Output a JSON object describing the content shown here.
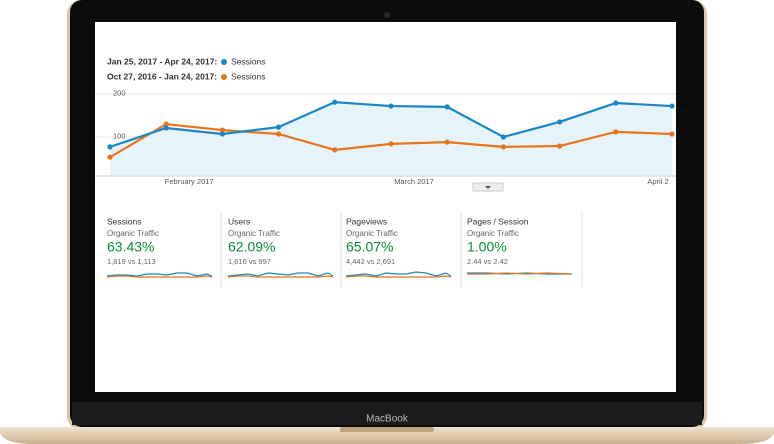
{
  "device": "MacBook",
  "chart_data": {
    "type": "line",
    "categories": [
      null,
      "February 2017",
      null,
      null,
      null,
      "March 2017",
      null,
      null,
      null,
      null,
      "April 2"
    ],
    "series": [
      {
        "name": "Sessions",
        "period": "Jan 25, 2017 - Apr 24, 2017:",
        "color": "#1a87c4",
        "values": [
          77,
          121,
          107,
          123,
          181,
          172,
          170,
          100,
          135,
          179,
          172
        ]
      },
      {
        "name": "Sessions",
        "period": "Oct 27, 2016 - Jan 24, 2017:",
        "color": "#e8751a",
        "values": [
          53,
          130,
          116,
          107,
          70,
          84,
          88,
          77,
          79,
          112,
          107
        ]
      }
    ],
    "ylim": [
      10,
      210
    ],
    "yticks": [
      100,
      200
    ],
    "grid": true
  },
  "metrics": [
    {
      "title": "Sessions",
      "subtitle": "Organic Traffic",
      "change": "63.43%",
      "compare": "1,819 vs 1,113"
    },
    {
      "title": "Users",
      "subtitle": "Organic Traffic",
      "change": "62.09%",
      "compare": "1,616 vs 997"
    },
    {
      "title": "Pageviews",
      "subtitle": "Organic Traffic",
      "change": "65.07%",
      "compare": "4,442 vs 2,691"
    },
    {
      "title": "Pages / Session",
      "subtitle": "Organic Traffic",
      "change": "1.00%",
      "compare": "2.44 vs 2.42"
    }
  ]
}
